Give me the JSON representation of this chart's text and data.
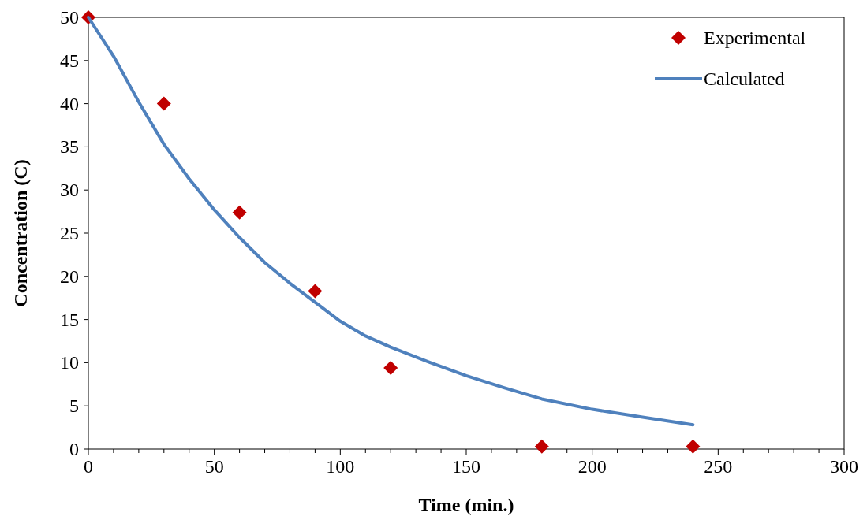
{
  "chart_data": {
    "type": "scatter",
    "xlabel": "Time  (min.)",
    "ylabel": "Concentration (C)",
    "xlim": [
      0,
      300
    ],
    "ylim": [
      0,
      50
    ],
    "xticks": [
      0,
      {
        "value": 10,
        "label": null
      },
      {
        "value": 20,
        "label": null
      },
      {
        "value": 30,
        "label": null
      },
      {
        "value": 40,
        "label": null
      },
      50,
      {
        "value": 60,
        "label": null
      },
      {
        "value": 70,
        "label": null
      },
      {
        "value": 80,
        "label": null
      },
      {
        "value": 90,
        "label": null
      },
      100,
      {
        "value": 110,
        "label": null
      },
      {
        "value": 120,
        "label": null
      },
      {
        "value": 130,
        "label": null
      },
      {
        "value": 140,
        "label": null
      },
      150,
      {
        "value": 160,
        "label": null
      },
      {
        "value": 170,
        "label": null
      },
      {
        "value": 180,
        "label": null
      },
      {
        "value": 190,
        "label": null
      },
      200,
      {
        "value": 210,
        "label": null
      },
      {
        "value": 220,
        "label": null
      },
      {
        "value": 230,
        "label": null
      },
      {
        "value": 240,
        "label": null
      },
      250,
      {
        "value": 260,
        "label": null
      },
      {
        "value": 270,
        "label": null
      },
      {
        "value": 280,
        "label": null
      },
      {
        "value": 290,
        "label": null
      },
      300
    ],
    "yticks": [
      0,
      5,
      10,
      15,
      20,
      25,
      30,
      35,
      40,
      45,
      50
    ],
    "grid": false,
    "legend": "top right",
    "series": [
      {
        "name": "Experimental",
        "marker": "diamond",
        "color": "#c00000",
        "x": [
          0,
          30,
          60,
          90,
          120,
          180,
          240
        ],
        "values": [
          50,
          40,
          27.4,
          18.3,
          9.4,
          0.3,
          0.3
        ]
      },
      {
        "name": "Calculated",
        "type": "line",
        "marker": "none",
        "line_style": "solid",
        "color": "#4f81bd",
        "x": [
          0,
          10,
          20,
          30,
          40,
          50,
          60,
          70,
          80,
          90,
          100,
          110,
          120,
          135,
          150,
          165,
          180,
          200,
          220,
          240
        ],
        "values": [
          50,
          45.5,
          40.2,
          35.3,
          31.3,
          27.7,
          24.5,
          21.6,
          19.2,
          17.0,
          14.8,
          13.1,
          11.8,
          10.1,
          8.5,
          7.1,
          5.8,
          4.6,
          3.7,
          2.8
        ]
      }
    ]
  }
}
